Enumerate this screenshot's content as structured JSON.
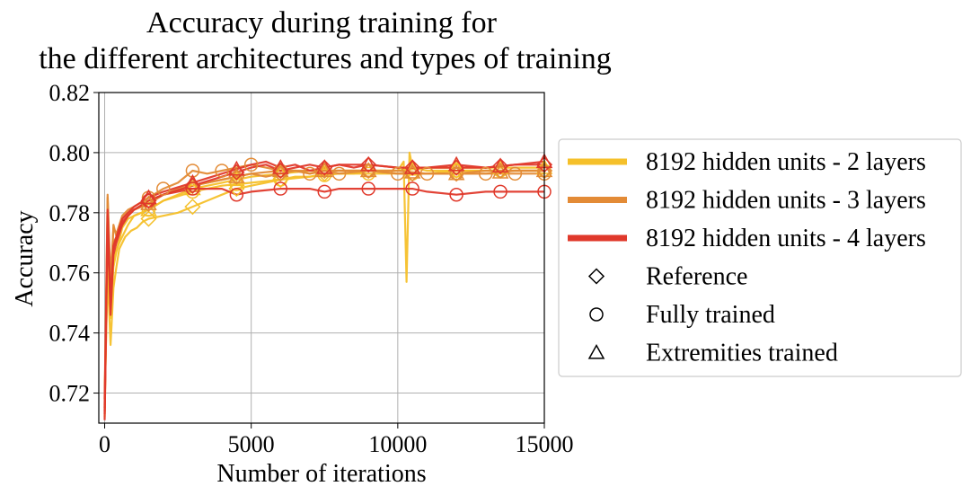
{
  "chart_data": {
    "type": "line",
    "title_lines": [
      "Accuracy during training for",
      "the different architectures and types of training"
    ],
    "xlabel": "Number of iterations",
    "ylabel": "Accuracy",
    "xlim": [
      -200,
      15000
    ],
    "ylim": [
      0.71,
      0.82
    ],
    "xticks": [
      0,
      5000,
      10000,
      15000
    ],
    "xtick_labels": [
      "0",
      "5000",
      "10000",
      "15000"
    ],
    "yticks": [
      0.72,
      0.74,
      0.76,
      0.78,
      0.8,
      0.82
    ],
    "ytick_labels": [
      "0.72",
      "0.74",
      "0.76",
      "0.78",
      "0.80",
      "0.82"
    ],
    "grid": true,
    "legend_position": "right, outside plot",
    "architectures": [
      {
        "name": "8192 hidden units - 2 layers",
        "color": "#f5c02a"
      },
      {
        "name": "8192 hidden units - 3 layers",
        "color": "#e38b36"
      },
      {
        "name": "8192 hidden units - 4 layers",
        "color": "#e0392b"
      }
    ],
    "training_types": [
      {
        "name": "Reference",
        "marker": "diamond"
      },
      {
        "name": "Fully trained",
        "marker": "circle"
      },
      {
        "name": "Extremities trained",
        "marker": "triangle"
      }
    ],
    "series": [
      {
        "arch": 0,
        "marker": "diamond",
        "marker_x": [
          1500,
          3000,
          4500,
          6000,
          7500,
          9000,
          10500,
          12000,
          13500,
          15000
        ],
        "x": [
          0,
          100,
          200,
          300,
          400,
          500,
          700,
          900,
          1100,
          1300,
          1500,
          2000,
          2500,
          3000,
          3500,
          4000,
          4500,
          5000,
          5500,
          6000,
          6500,
          7000,
          7500,
          8000,
          8500,
          9000,
          9500,
          10000,
          10200,
          10300,
          10400,
          10500,
          11000,
          12000,
          13000,
          14000,
          15000
        ],
        "y": [
          0.718,
          0.76,
          0.736,
          0.755,
          0.762,
          0.768,
          0.772,
          0.774,
          0.775,
          0.777,
          0.778,
          0.779,
          0.78,
          0.782,
          0.784,
          0.786,
          0.788,
          0.789,
          0.79,
          0.791,
          0.792,
          0.792,
          0.793,
          0.793,
          0.793,
          0.794,
          0.794,
          0.794,
          0.797,
          0.757,
          0.8,
          0.795,
          0.794,
          0.794,
          0.794,
          0.794,
          0.794
        ]
      },
      {
        "arch": 0,
        "marker": "circle",
        "marker_x": [
          1500,
          3000,
          4500,
          6000,
          7500,
          9000,
          10500,
          12000,
          13500,
          15000
        ],
        "x": [
          0,
          100,
          200,
          300,
          400,
          600,
          800,
          1000,
          1500,
          2000,
          3000,
          4000,
          5000,
          6000,
          7000,
          8000,
          9000,
          10000,
          11000,
          12000,
          13000,
          14000,
          15000
        ],
        "y": [
          0.712,
          0.77,
          0.745,
          0.762,
          0.767,
          0.775,
          0.778,
          0.779,
          0.781,
          0.784,
          0.787,
          0.789,
          0.79,
          0.791,
          0.792,
          0.793,
          0.793,
          0.793,
          0.793,
          0.794,
          0.794,
          0.794,
          0.794
        ]
      },
      {
        "arch": 0,
        "marker": "triangle",
        "marker_x": [
          1500,
          3000,
          4500,
          6000,
          7500,
          9000,
          10500,
          12000,
          13500,
          15000
        ],
        "x": [
          0,
          100,
          200,
          300,
          500,
          800,
          1000,
          1500,
          2000,
          3000,
          4000,
          5000,
          6000,
          7000,
          8000,
          9000,
          10000,
          11000,
          12000,
          13000,
          14000,
          15000
        ],
        "y": [
          0.715,
          0.765,
          0.75,
          0.765,
          0.77,
          0.776,
          0.779,
          0.781,
          0.784,
          0.788,
          0.79,
          0.792,
          0.793,
          0.794,
          0.794,
          0.794,
          0.794,
          0.795,
          0.795,
          0.795,
          0.795,
          0.795
        ]
      },
      {
        "arch": 1,
        "marker": "diamond",
        "marker_x": [
          1500,
          3000,
          4500,
          6000,
          7500,
          9000,
          10500,
          12000,
          13500,
          15000
        ],
        "x": [
          0,
          100,
          200,
          300,
          400,
          600,
          800,
          1000,
          1500,
          2000,
          2500,
          3000,
          3500,
          4000,
          4500,
          5000,
          5500,
          6000,
          6500,
          7000,
          7500,
          8000,
          9000,
          10000,
          11000,
          12000,
          13000,
          14000,
          15000
        ],
        "y": [
          0.715,
          0.785,
          0.752,
          0.776,
          0.772,
          0.778,
          0.78,
          0.781,
          0.783,
          0.786,
          0.788,
          0.789,
          0.79,
          0.791,
          0.792,
          0.793,
          0.792,
          0.793,
          0.794,
          0.793,
          0.794,
          0.794,
          0.794,
          0.793,
          0.793,
          0.793,
          0.794,
          0.794,
          0.794
        ]
      },
      {
        "arch": 1,
        "marker": "circle",
        "marker_x": [
          1500,
          2000,
          3000,
          4000,
          5000,
          6000,
          7000,
          8000,
          9000,
          10000,
          11000,
          12000,
          13000,
          14000,
          15000
        ],
        "x": [
          0,
          100,
          200,
          300,
          400,
          600,
          800,
          1000,
          1500,
          2000,
          2500,
          3000,
          3500,
          4000,
          4500,
          5000,
          5500,
          6000,
          6500,
          7000,
          7500,
          8000,
          9000,
          10000,
          11000,
          12000,
          13000,
          14000,
          15000
        ],
        "y": [
          0.718,
          0.786,
          0.758,
          0.775,
          0.773,
          0.779,
          0.781,
          0.782,
          0.785,
          0.788,
          0.79,
          0.794,
          0.793,
          0.794,
          0.795,
          0.796,
          0.795,
          0.794,
          0.794,
          0.793,
          0.794,
          0.793,
          0.794,
          0.793,
          0.793,
          0.793,
          0.793,
          0.793,
          0.793
        ]
      },
      {
        "arch": 1,
        "marker": "triangle",
        "marker_x": [
          1500,
          3000,
          4500,
          6000,
          7500,
          9000,
          10500,
          12000,
          13500,
          15000
        ],
        "x": [
          0,
          100,
          200,
          300,
          500,
          800,
          1000,
          1500,
          2000,
          3000,
          4000,
          5000,
          6000,
          7000,
          8000,
          9000,
          10000,
          11000,
          12000,
          13000,
          14000,
          15000
        ],
        "y": [
          0.716,
          0.78,
          0.755,
          0.77,
          0.774,
          0.779,
          0.781,
          0.783,
          0.786,
          0.789,
          0.791,
          0.793,
          0.794,
          0.794,
          0.794,
          0.794,
          0.794,
          0.793,
          0.793,
          0.793,
          0.794,
          0.794
        ]
      },
      {
        "arch": 2,
        "marker": "diamond",
        "marker_x": [
          1500,
          3000,
          4500,
          6000,
          7500,
          9000,
          10500,
          12000,
          13500,
          15000
        ],
        "x": [
          0,
          100,
          200,
          300,
          400,
          600,
          800,
          1000,
          1500,
          2000,
          3000,
          4000,
          5000,
          5500,
          6000,
          6500,
          7000,
          7500,
          8000,
          9000,
          10000,
          11000,
          12000,
          13000,
          14000,
          15000
        ],
        "y": [
          0.713,
          0.779,
          0.748,
          0.768,
          0.771,
          0.777,
          0.779,
          0.781,
          0.784,
          0.786,
          0.789,
          0.792,
          0.795,
          0.796,
          0.794,
          0.795,
          0.796,
          0.795,
          0.796,
          0.796,
          0.795,
          0.795,
          0.795,
          0.795,
          0.796,
          0.796
        ]
      },
      {
        "arch": 2,
        "marker": "circle",
        "marker_x": [
          1500,
          3000,
          4500,
          6000,
          7500,
          9000,
          10500,
          12000,
          13500,
          15000
        ],
        "x": [
          0,
          100,
          200,
          300,
          400,
          600,
          800,
          1000,
          1500,
          2000,
          3000,
          4000,
          4500,
          5000,
          6000,
          7000,
          7500,
          8000,
          9000,
          10000,
          10500,
          11000,
          12000,
          13000,
          13500,
          14000,
          15000
        ],
        "y": [
          0.711,
          0.777,
          0.746,
          0.766,
          0.77,
          0.776,
          0.779,
          0.781,
          0.784,
          0.786,
          0.788,
          0.788,
          0.786,
          0.787,
          0.788,
          0.788,
          0.787,
          0.788,
          0.788,
          0.788,
          0.788,
          0.787,
          0.786,
          0.787,
          0.787,
          0.787,
          0.787
        ]
      },
      {
        "arch": 2,
        "marker": "triangle",
        "marker_x": [
          1500,
          3000,
          4500,
          6000,
          7500,
          9000,
          10500,
          12000,
          13500,
          15000
        ],
        "x": [
          0,
          100,
          200,
          300,
          400,
          600,
          800,
          1000,
          1500,
          2000,
          3000,
          4000,
          5000,
          5500,
          6000,
          6500,
          7000,
          7500,
          8000,
          8500,
          9000,
          10000,
          11000,
          12000,
          13000,
          14000,
          15000
        ],
        "y": [
          0.714,
          0.781,
          0.75,
          0.769,
          0.772,
          0.778,
          0.78,
          0.782,
          0.785,
          0.787,
          0.79,
          0.793,
          0.796,
          0.797,
          0.795,
          0.796,
          0.794,
          0.795,
          0.796,
          0.795,
          0.796,
          0.795,
          0.795,
          0.796,
          0.795,
          0.796,
          0.797
        ]
      }
    ]
  }
}
